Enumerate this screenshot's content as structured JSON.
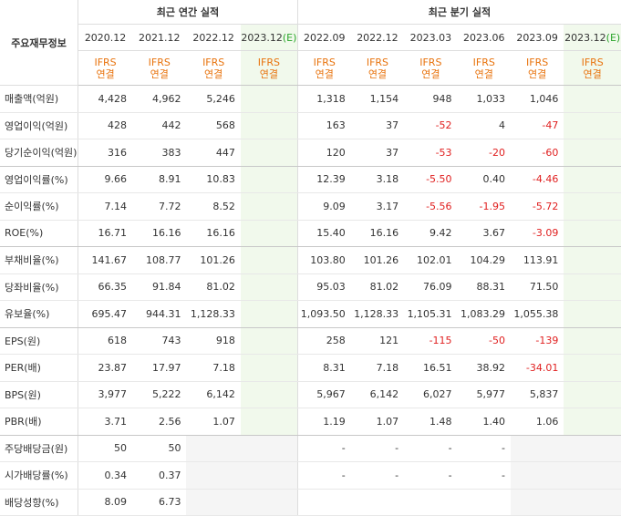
{
  "header": {
    "corner_label": "주요재무정보",
    "annual_title": "최근 연간 실적",
    "quarter_title": "최근 분기 실적",
    "annual_periods": [
      "2020.12",
      "2021.12",
      "2022.12",
      "2023.12"
    ],
    "quarter_periods": [
      "2022.09",
      "2022.12",
      "2023.03",
      "2023.06",
      "2023.09",
      "2023.12"
    ],
    "estimate_mark": "(E)",
    "ifrs": "IFRS",
    "consolidated": "연결"
  },
  "rows": [
    {
      "label": "매출액(억원)",
      "annual": [
        "4,428",
        "4,962",
        "5,246",
        ""
      ],
      "quarter": [
        "1,318",
        "1,154",
        "948",
        "1,033",
        "1,046",
        ""
      ]
    },
    {
      "label": "영업이익(억원)",
      "annual": [
        "428",
        "442",
        "568",
        ""
      ],
      "quarter": [
        "163",
        "37",
        "-52",
        "4",
        "-47",
        ""
      ]
    },
    {
      "label": "당기순이익(억원)",
      "annual": [
        "316",
        "383",
        "447",
        ""
      ],
      "quarter": [
        "120",
        "37",
        "-53",
        "-20",
        "-60",
        ""
      ]
    },
    {
      "label": "영업이익률(%)",
      "annual": [
        "9.66",
        "8.91",
        "10.83",
        ""
      ],
      "quarter": [
        "12.39",
        "3.18",
        "-5.50",
        "0.40",
        "-4.46",
        ""
      ]
    },
    {
      "label": "순이익률(%)",
      "annual": [
        "7.14",
        "7.72",
        "8.52",
        ""
      ],
      "quarter": [
        "9.09",
        "3.17",
        "-5.56",
        "-1.95",
        "-5.72",
        ""
      ]
    },
    {
      "label": "ROE(%)",
      "annual": [
        "16.71",
        "16.16",
        "16.16",
        ""
      ],
      "quarter": [
        "15.40",
        "16.16",
        "9.42",
        "3.67",
        "-3.09",
        ""
      ]
    },
    {
      "label": "부채비율(%)",
      "annual": [
        "141.67",
        "108.77",
        "101.26",
        ""
      ],
      "quarter": [
        "103.80",
        "101.26",
        "102.01",
        "104.29",
        "113.91",
        ""
      ]
    },
    {
      "label": "당좌비율(%)",
      "annual": [
        "66.35",
        "91.84",
        "81.02",
        ""
      ],
      "quarter": [
        "95.03",
        "81.02",
        "76.09",
        "88.31",
        "71.50",
        ""
      ]
    },
    {
      "label": "유보율(%)",
      "annual": [
        "695.47",
        "944.31",
        "1,128.33",
        ""
      ],
      "quarter": [
        "1,093.50",
        "1,128.33",
        "1,105.31",
        "1,083.29",
        "1,055.38",
        ""
      ]
    },
    {
      "label": "EPS(원)",
      "annual": [
        "618",
        "743",
        "918",
        ""
      ],
      "quarter": [
        "258",
        "121",
        "-115",
        "-50",
        "-139",
        ""
      ]
    },
    {
      "label": "PER(배)",
      "annual": [
        "23.87",
        "17.97",
        "7.18",
        ""
      ],
      "quarter": [
        "8.31",
        "7.18",
        "16.51",
        "38.92",
        "-34.01",
        ""
      ]
    },
    {
      "label": "BPS(원)",
      "annual": [
        "3,977",
        "5,222",
        "6,142",
        ""
      ],
      "quarter": [
        "5,967",
        "6,142",
        "6,027",
        "5,977",
        "5,837",
        ""
      ]
    },
    {
      "label": "PBR(배)",
      "annual": [
        "3.71",
        "2.56",
        "1.07",
        ""
      ],
      "quarter": [
        "1.19",
        "1.07",
        "1.48",
        "1.40",
        "1.06",
        ""
      ]
    },
    {
      "label": "주당배당금(원)",
      "annual": [
        "50",
        "50",
        "",
        ""
      ],
      "quarter": [
        "-",
        "-",
        "-",
        "-",
        "",
        ""
      ]
    },
    {
      "label": "시가배당률(%)",
      "annual": [
        "0.34",
        "0.37",
        "",
        ""
      ],
      "quarter": [
        "-",
        "-",
        "-",
        "-",
        "",
        ""
      ]
    },
    {
      "label": "배당성향(%)",
      "annual": [
        "8.09",
        "6.73",
        "",
        ""
      ],
      "quarter": [
        "",
        "",
        "",
        "",
        "",
        ""
      ]
    }
  ]
}
